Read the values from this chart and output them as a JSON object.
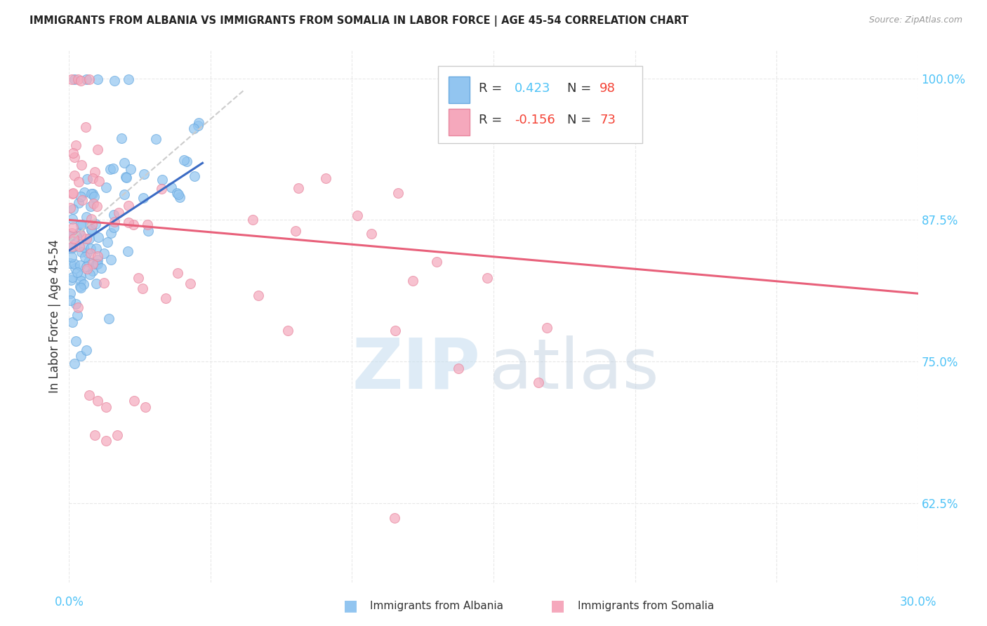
{
  "title": "IMMIGRANTS FROM ALBANIA VS IMMIGRANTS FROM SOMALIA IN LABOR FORCE | AGE 45-54 CORRELATION CHART",
  "source": "Source: ZipAtlas.com",
  "ylabel": "In Labor Force | Age 45-54",
  "y_ticks": [
    0.625,
    0.75,
    0.875,
    1.0
  ],
  "y_tick_labels": [
    "62.5%",
    "75.0%",
    "87.5%",
    "100.0%"
  ],
  "x_ticks": [
    0.0,
    0.05,
    0.1,
    0.15,
    0.2,
    0.25,
    0.3
  ],
  "x_min": 0.0,
  "x_max": 0.3,
  "y_min": 0.555,
  "y_max": 1.025,
  "albania_color": "#92C5F0",
  "somalia_color": "#F5A8BC",
  "albania_edge_color": "#6AAAE0",
  "somalia_edge_color": "#E888A0",
  "albania_line_color": "#3B6BC4",
  "somalia_line_color": "#E8607A",
  "dash_color": "#CCCCCC",
  "grid_color": "#E8E8E8",
  "tick_color": "#4FC3F7",
  "albania_label": "Immigrants from Albania",
  "somalia_label": "Immigrants from Somalia",
  "legend_r_alb": "R =  0.423",
  "legend_n_alb": "N = 98",
  "legend_r_som": "R = -0.156",
  "legend_n_som": "N = 73",
  "r_alb_color": "#4FC3F7",
  "n_alb_color": "#F44336",
  "r_som_color": "#F44336",
  "n_som_color": "#F44336",
  "watermark_zip_color": "#C8DFF0",
  "watermark_atlas_color": "#C0D0E0"
}
